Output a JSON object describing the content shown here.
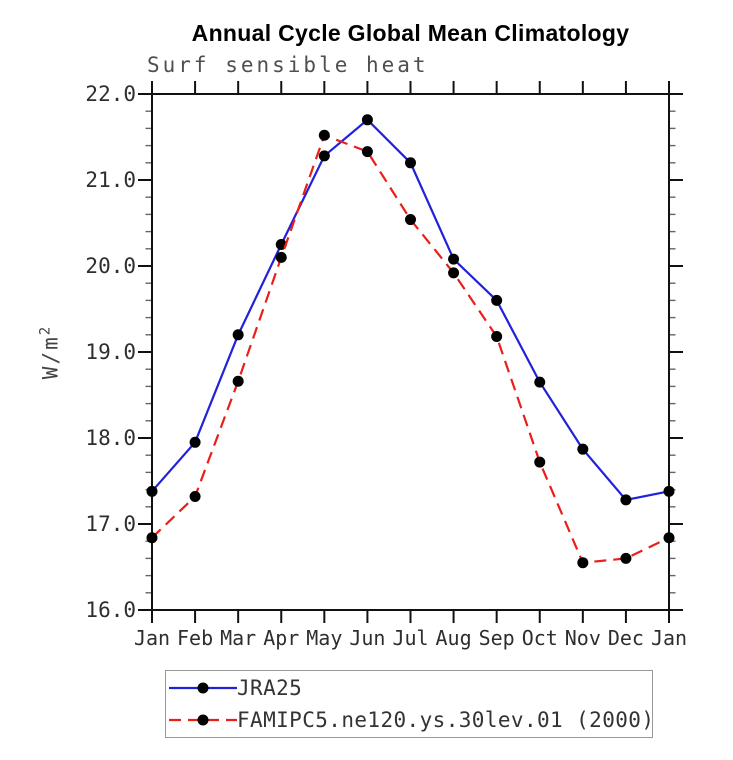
{
  "chart_data": {
    "type": "line",
    "title": "Annual Cycle Global Mean Climatology",
    "subtitle": "Surf sensible heat",
    "ylabel_base": "W/m",
    "ylabel_sup": "2",
    "xlabel": "",
    "categories": [
      "Jan",
      "Feb",
      "Mar",
      "Apr",
      "May",
      "Jun",
      "Jul",
      "Aug",
      "Sep",
      "Oct",
      "Nov",
      "Dec",
      "Jan"
    ],
    "ylim": [
      16.0,
      22.0
    ],
    "y_major_ticks": [
      16,
      17,
      18,
      19,
      20,
      21,
      22
    ],
    "y_tick_labels": [
      "16.0",
      "17.0",
      "18.0",
      "19.0",
      "20.0",
      "21.0",
      "22.0"
    ],
    "y_minor_step": 0.2,
    "grid": false,
    "legend_position": "bottom-left",
    "axis_color": "#111111",
    "minor_tick_color": "#666666",
    "text_color": "#2e2e2e",
    "series": [
      {
        "name": "JRA25",
        "color": "#2121d9",
        "line_style": "solid",
        "marker": "filled-circle",
        "marker_color": "#000000",
        "values": [
          17.38,
          17.95,
          19.2,
          20.25,
          21.28,
          21.7,
          21.2,
          20.08,
          19.6,
          18.65,
          17.87,
          17.28,
          17.38
        ]
      },
      {
        "name": "FAMIPC5.ne120.ys.30lev.01 (2000)",
        "color": "#eb1e19",
        "line_style": "dashed",
        "marker": "filled-circle",
        "marker_color": "#000000",
        "values": [
          16.84,
          17.32,
          18.66,
          20.1,
          21.52,
          21.33,
          20.54,
          19.92,
          19.18,
          17.72,
          16.55,
          16.6,
          16.84
        ]
      }
    ]
  }
}
